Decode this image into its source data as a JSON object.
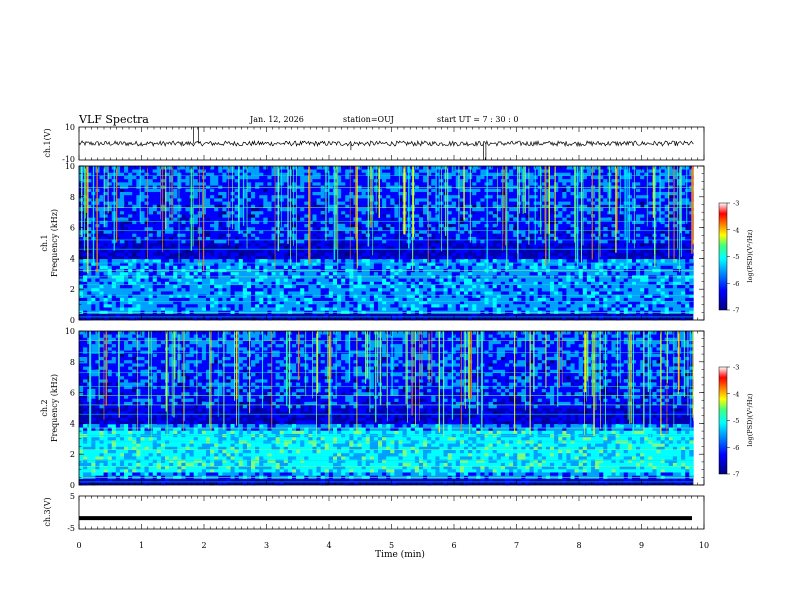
{
  "header": {
    "title": "VLF Spectra",
    "date": "Jan. 12, 2026",
    "station": "station=OUJ",
    "start_ut": "start UT =  7 : 30 : 0"
  },
  "chart_data": [
    {
      "type": "line",
      "name": "ch1-waveform",
      "ylabel": "ch.1(V)",
      "ylim": [
        -10,
        10
      ],
      "yticks": [
        "10",
        "-10"
      ],
      "xlim": [
        0,
        10
      ],
      "baseline": 0,
      "noise_amplitude": 1.5,
      "spikes": [
        {
          "t": 1.83,
          "v": 10
        },
        {
          "t": 1.91,
          "v": 10
        },
        {
          "t": 6.47,
          "v": -10
        },
        {
          "t": 6.51,
          "v": -10
        },
        {
          "t": 4.35,
          "v": -4
        }
      ]
    },
    {
      "type": "heatmap",
      "name": "ch1-spectrogram",
      "ylabel": "ch.1\nFrequency (kHz)",
      "ylim": [
        0,
        10
      ],
      "yticks": [
        "0",
        "2",
        "4",
        "6",
        "8",
        "10"
      ],
      "xlim": [
        0,
        9.83
      ],
      "colorbar": {
        "label": "log(PSD)(V²/Hz)",
        "range": [
          -7,
          -3
        ],
        "ticks": [
          "-3",
          "-4",
          "-5",
          "-6",
          "-7"
        ]
      }
    },
    {
      "type": "heatmap",
      "name": "ch2-spectrogram",
      "ylabel": "ch.2\nFrequency (kHz)",
      "ylim": [
        0,
        10
      ],
      "yticks": [
        "0",
        "2",
        "4",
        "6",
        "8",
        "10"
      ],
      "xlim": [
        0,
        9.83
      ],
      "colorbar": {
        "label": "log(PSD)(V²/Hz)",
        "range": [
          -7,
          -3
        ],
        "ticks": [
          "-3",
          "-4",
          "-5",
          "-6",
          "-7"
        ]
      }
    },
    {
      "type": "line",
      "name": "ch3-waveform",
      "ylabel": "ch.3(V)",
      "ylim": [
        -5,
        5
      ],
      "yticks": [
        "5",
        "-5"
      ],
      "xlim": [
        0,
        10
      ],
      "baseline": -1.7
    }
  ],
  "x_axis": {
    "label": "Time (min)",
    "ticks": [
      "0",
      "1",
      "2",
      "3",
      "4",
      "5",
      "6",
      "7",
      "8",
      "9",
      "10"
    ]
  },
  "colors": {
    "colormap": [
      "#00007f",
      "#0000ff",
      "#00a0ff",
      "#00ffff",
      "#7fff7f",
      "#ffff00",
      "#ff8000",
      "#ff0000",
      "#ffffff"
    ]
  }
}
